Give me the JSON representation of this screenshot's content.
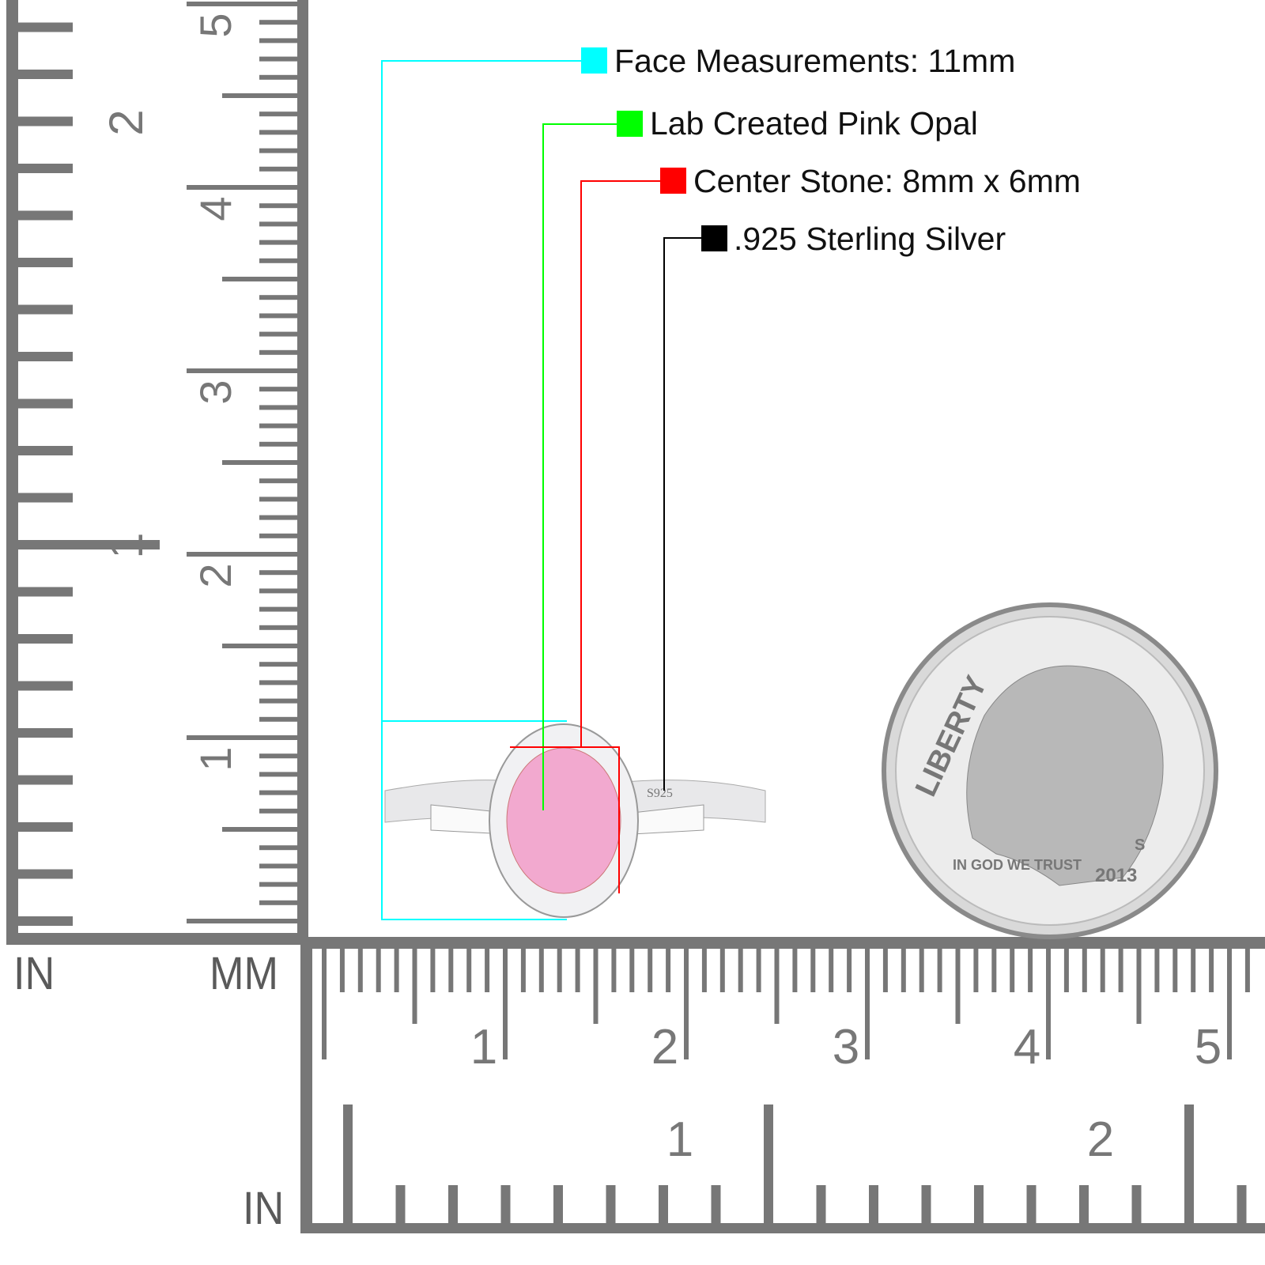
{
  "callouts": [
    {
      "label": "Face Measurements: 11mm",
      "color": "#00ffff"
    },
    {
      "label": "Lab Created Pink Opal",
      "color": "#00ff00"
    },
    {
      "label": "Center Stone: 8mm x 6mm",
      "color": "#ff0000"
    },
    {
      "label": ".925 Sterling Silver",
      "color": "#000000"
    }
  ],
  "rulers": {
    "vertical": {
      "inch_unit": "IN",
      "mm_unit": "MM",
      "inch_labels": [
        "1",
        "2"
      ],
      "cm_labels": [
        "1",
        "2",
        "3",
        "4",
        "5"
      ]
    },
    "horizontal": {
      "inch_unit": "IN",
      "cm_labels": [
        "1",
        "2",
        "3",
        "4",
        "5"
      ],
      "inch_labels": [
        "1",
        "2"
      ]
    },
    "color": "#777777"
  },
  "ring": {
    "stamp": "S925",
    "stone_color": "#f2a9cf"
  },
  "coin": {
    "legend": "LIBERTY",
    "motto": "IN GOD WE TRUST",
    "year": "2013",
    "mint_mark": "S"
  }
}
